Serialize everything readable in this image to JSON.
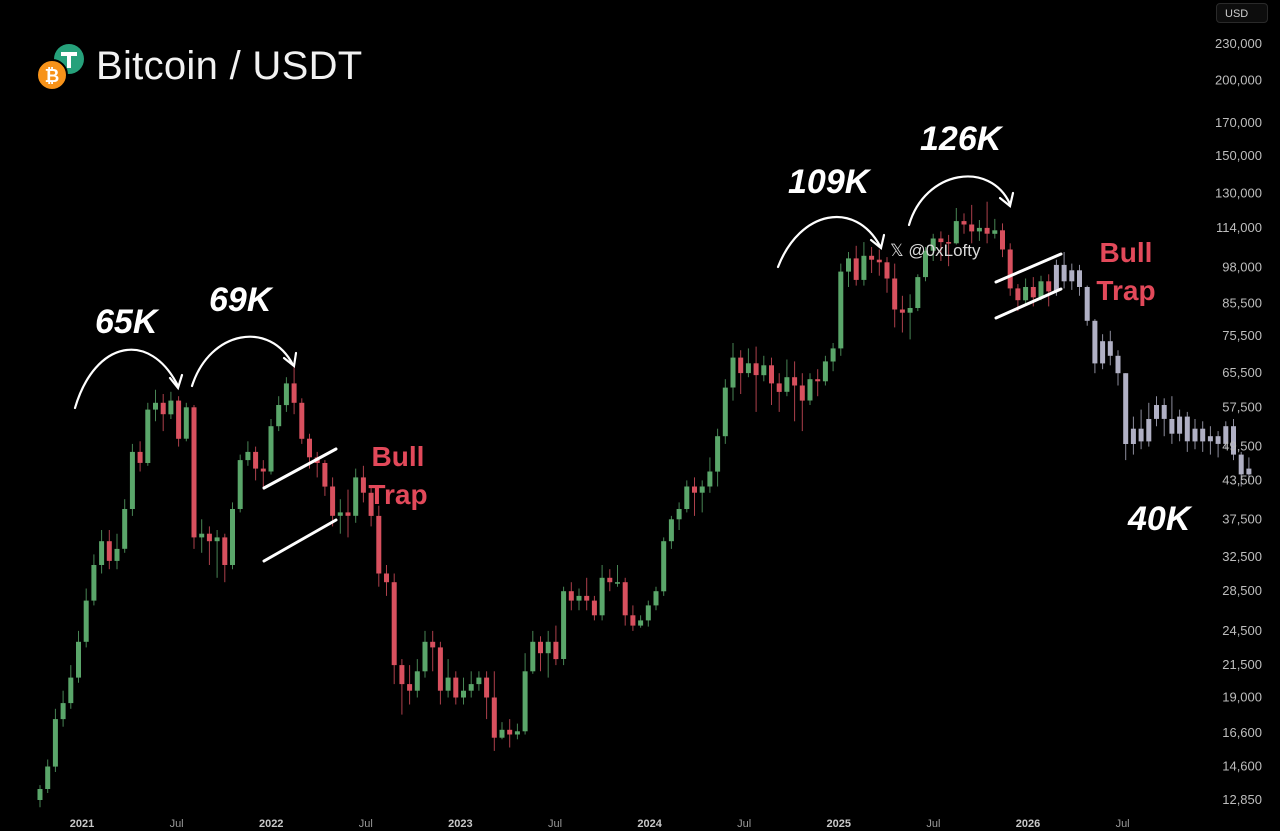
{
  "header": {
    "title": "Bitcoin / USDT",
    "currency": "USD"
  },
  "watermark": "𝕏 @0xLofty",
  "colors": {
    "up": "#5aa66a",
    "down": "#d8505e",
    "projection": "#b0b0c4",
    "annotation": "#ffffff",
    "trap_text": "#e2495a"
  },
  "chart_data": {
    "type": "candlestick",
    "scale": "log",
    "y_ticks": [
      12850,
      14600,
      16600,
      19000,
      21500,
      24500,
      28500,
      32500,
      37500,
      43500,
      49500,
      57500,
      65500,
      75500,
      85500,
      98000,
      114000,
      130000,
      150000,
      170000,
      200000,
      230000
    ],
    "y_tick_labels": [
      "12,850",
      "14,600",
      "16,600",
      "19,000",
      "21,500",
      "24,500",
      "28,500",
      "32,500",
      "37,500",
      "43,500",
      "49,500",
      "57,500",
      "65,500",
      "75,500",
      "85,500",
      "98,000",
      "114,000",
      "130,000",
      "150,000",
      "170,000",
      "200,000",
      "230,000"
    ],
    "x_ticks": [
      {
        "label": "2021",
        "year": true
      },
      {
        "label": "Jul",
        "year": false
      },
      {
        "label": "2022",
        "year": true
      },
      {
        "label": "Jul",
        "year": false
      },
      {
        "label": "2023",
        "year": true
      },
      {
        "label": "Jul",
        "year": false
      },
      {
        "label": "2024",
        "year": true
      },
      {
        "label": "Jul",
        "year": false
      },
      {
        "label": "2025",
        "year": true
      },
      {
        "label": "Jul",
        "year": false
      },
      {
        "label": "2026",
        "year": true
      },
      {
        "label": "Jul",
        "year": false
      }
    ],
    "candles": [
      [
        12850,
        13400,
        12500,
        13600
      ],
      [
        13400,
        14600,
        13200,
        15000
      ],
      [
        14600,
        17500,
        14300,
        18200
      ],
      [
        17500,
        18600,
        17000,
        19500
      ],
      [
        18600,
        20500,
        18200,
        21500
      ],
      [
        20500,
        23500,
        20100,
        24500
      ],
      [
        23500,
        27500,
        23000,
        28800
      ],
      [
        27500,
        31500,
        27000,
        32800
      ],
      [
        31500,
        34500,
        30500,
        36000
      ],
      [
        34500,
        32000,
        31000,
        36000
      ],
      [
        32000,
        33500,
        31000,
        35500
      ],
      [
        33500,
        39000,
        33000,
        40500
      ],
      [
        39000,
        48500,
        38000,
        50000
      ],
      [
        48500,
        46500,
        45000,
        50500
      ],
      [
        46500,
        57000,
        46000,
        58500
      ],
      [
        57000,
        58500,
        54500,
        61500
      ],
      [
        58500,
        56000,
        52500,
        60500
      ],
      [
        56000,
        59000,
        55000,
        61000
      ],
      [
        59000,
        51000,
        49500,
        60000
      ],
      [
        51000,
        57500,
        50500,
        58500
      ],
      [
        57500,
        35000,
        33500,
        58000
      ],
      [
        35000,
        35500,
        33000,
        37500
      ],
      [
        35500,
        34500,
        31500,
        36500
      ],
      [
        34500,
        35000,
        30000,
        36000
      ],
      [
        35000,
        31500,
        29500,
        35500
      ],
      [
        31500,
        39000,
        31000,
        40000
      ],
      [
        39000,
        47000,
        38500,
        48000
      ],
      [
        47000,
        48500,
        46000,
        50500
      ],
      [
        48500,
        45500,
        43500,
        49500
      ],
      [
        45500,
        45000,
        42000,
        47000
      ],
      [
        45000,
        53500,
        44500,
        55000
      ],
      [
        53500,
        58000,
        52500,
        60000
      ],
      [
        58000,
        63000,
        56500,
        64500
      ],
      [
        63000,
        58500,
        56000,
        67500
      ],
      [
        58500,
        51000,
        50000,
        59500
      ],
      [
        51000,
        47500,
        45500,
        52000
      ],
      [
        47500,
        46500,
        44000,
        48500
      ],
      [
        46500,
        42500,
        41000,
        47000
      ],
      [
        42500,
        38000,
        36500,
        44000
      ],
      [
        38000,
        38500,
        35500,
        40500
      ],
      [
        38500,
        38000,
        35000,
        42000
      ],
      [
        38000,
        44000,
        37000,
        45500
      ],
      [
        44000,
        41500,
        40000,
        46000
      ],
      [
        41500,
        38000,
        36500,
        42500
      ],
      [
        38000,
        30500,
        29000,
        39500
      ],
      [
        30500,
        29500,
        28000,
        31500
      ],
      [
        29500,
        21500,
        20000,
        30500
      ],
      [
        21500,
        20000,
        17800,
        22000
      ],
      [
        20000,
        19500,
        18500,
        21500
      ],
      [
        19500,
        21000,
        19000,
        22000
      ],
      [
        21000,
        23500,
        20500,
        24500
      ],
      [
        23500,
        23000,
        21000,
        24500
      ],
      [
        23000,
        19500,
        18500,
        23500
      ],
      [
        19500,
        20500,
        19000,
        22000
      ],
      [
        20500,
        19000,
        18500,
        21000
      ],
      [
        19000,
        19500,
        18500,
        20500
      ],
      [
        19500,
        20000,
        19000,
        21000
      ],
      [
        20000,
        20500,
        19500,
        21000
      ],
      [
        20500,
        19000,
        17500,
        21000
      ],
      [
        19000,
        16300,
        15500,
        21000
      ],
      [
        16300,
        16800,
        16200,
        17300
      ],
      [
        16800,
        16500,
        15700,
        17500
      ],
      [
        16500,
        16700,
        16200,
        17200
      ],
      [
        16700,
        21000,
        16500,
        22500
      ],
      [
        21000,
        23500,
        20800,
        24500
      ],
      [
        23500,
        22500,
        21000,
        24000
      ],
      [
        22500,
        23500,
        20500,
        24500
      ],
      [
        23500,
        22000,
        21500,
        25000
      ],
      [
        22000,
        28500,
        21500,
        29000
      ],
      [
        28500,
        27500,
        26500,
        29500
      ],
      [
        27500,
        28000,
        26500,
        28800
      ],
      [
        28000,
        27500,
        26500,
        30000
      ],
      [
        27500,
        26000,
        25500,
        28000
      ],
      [
        26000,
        30000,
        25500,
        31500
      ],
      [
        30000,
        29500,
        28500,
        31000
      ],
      [
        29500,
        29500,
        29000,
        31500
      ],
      [
        29500,
        26000,
        25000,
        30000
      ],
      [
        26000,
        25000,
        24500,
        27000
      ],
      [
        25000,
        25500,
        24800,
        26000
      ],
      [
        25500,
        27000,
        24900,
        27500
      ],
      [
        27000,
        28500,
        26500,
        29000
      ],
      [
        28500,
        34500,
        28000,
        35000
      ],
      [
        34500,
        37500,
        33500,
        38000
      ],
      [
        37500,
        39000,
        36000,
        40000
      ],
      [
        39000,
        42500,
        38500,
        43500
      ],
      [
        42500,
        41500,
        38000,
        44000
      ],
      [
        41500,
        42500,
        38500,
        43500
      ],
      [
        42500,
        45000,
        41500,
        47500
      ],
      [
        45000,
        51500,
        42500,
        53000
      ],
      [
        51500,
        62000,
        50000,
        64000
      ],
      [
        62000,
        69500,
        59000,
        73500
      ],
      [
        69500,
        65500,
        60500,
        71500
      ],
      [
        65500,
        68000,
        64500,
        72000
      ],
      [
        68000,
        65000,
        56500,
        72500
      ],
      [
        65000,
        67500,
        63500,
        70000
      ],
      [
        67500,
        63000,
        58000,
        69500
      ],
      [
        63000,
        61000,
        56500,
        65500
      ],
      [
        61000,
        64500,
        60000,
        69000
      ],
      [
        64500,
        62500,
        54500,
        68500
      ],
      [
        62500,
        59000,
        52500,
        65500
      ],
      [
        59000,
        64000,
        58000,
        65500
      ],
      [
        64000,
        63500,
        60000,
        66500
      ],
      [
        63500,
        68500,
        62500,
        70000
      ],
      [
        68500,
        72000,
        66000,
        73500
      ],
      [
        72000,
        96500,
        70000,
        99500
      ],
      [
        96500,
        101500,
        91000,
        104000
      ],
      [
        101500,
        93500,
        91500,
        106500
      ],
      [
        93500,
        102500,
        91500,
        108000
      ],
      [
        102500,
        101000,
        96000,
        106000
      ],
      [
        101000,
        100000,
        95000,
        105000
      ],
      [
        100000,
        94000,
        89000,
        102000
      ],
      [
        94000,
        83500,
        78000,
        99500
      ],
      [
        83500,
        82500,
        76500,
        88000
      ],
      [
        82500,
        84000,
        74500,
        88500
      ],
      [
        84000,
        94500,
        83000,
        95500
      ],
      [
        94500,
        104500,
        93000,
        106000
      ],
      [
        104500,
        109500,
        100500,
        111500
      ],
      [
        109500,
        108000,
        100500,
        112500
      ],
      [
        108000,
        107500,
        98500,
        111000
      ],
      [
        107500,
        117000,
        107000,
        123000
      ],
      [
        117000,
        115500,
        111500,
        120500
      ],
      [
        115500,
        112500,
        107500,
        124500
      ],
      [
        112500,
        114000,
        108500,
        117500
      ],
      [
        114000,
        111500,
        107500,
        126000
      ],
      [
        111500,
        113000,
        109500,
        118000
      ],
      [
        113000,
        105000,
        102000,
        116000
      ],
      [
        105000,
        90500,
        88000,
        107500
      ],
      [
        90500,
        86500,
        83000,
        92000
      ],
      [
        86500,
        91000,
        85000,
        94000
      ],
      [
        91000,
        87500,
        84500,
        94500
      ],
      [
        87500,
        93000,
        86500,
        95000
      ],
      [
        93000,
        89500,
        84500,
        95500
      ]
    ],
    "projection": [
      [
        89500,
        99000,
        88000,
        101000
      ],
      [
        99000,
        93000,
        90500,
        104000
      ],
      [
        93000,
        97000,
        90000,
        99500
      ],
      [
        97000,
        91000,
        88000,
        99000
      ],
      [
        91000,
        80000,
        78500,
        91500
      ],
      [
        80000,
        68000,
        65500,
        80500
      ],
      [
        68000,
        74000,
        66500,
        76000
      ],
      [
        74000,
        70000,
        67500,
        77000
      ],
      [
        70000,
        65500,
        62500,
        71500
      ],
      [
        65500,
        50000,
        47000,
        65500
      ],
      [
        50000,
        53000,
        48000,
        55500
      ],
      [
        53000,
        50500,
        49000,
        57000
      ],
      [
        50500,
        55000,
        49500,
        58500
      ],
      [
        55000,
        58000,
        53500,
        60000
      ],
      [
        58000,
        55000,
        51500,
        59500
      ],
      [
        55000,
        52000,
        50000,
        60000
      ],
      [
        52000,
        55500,
        50500,
        57000
      ],
      [
        55500,
        50500,
        48500,
        56500
      ],
      [
        50500,
        53000,
        49000,
        55000
      ],
      [
        53000,
        50500,
        48500,
        54500
      ],
      [
        50500,
        51500,
        48000,
        53500
      ],
      [
        51500,
        50000,
        47500,
        52500
      ],
      [
        50000,
        53500,
        49000,
        54500
      ],
      [
        53500,
        48000,
        47000,
        55000
      ],
      [
        48000,
        44500,
        42500,
        48500
      ],
      [
        44500,
        45500,
        43000,
        47500
      ]
    ],
    "annotations": {
      "peaks": [
        "65K",
        "69K",
        "109K",
        "126K"
      ],
      "target": "40K",
      "traps": [
        "Bull\nTrap",
        "Bull\nTrap"
      ]
    }
  }
}
